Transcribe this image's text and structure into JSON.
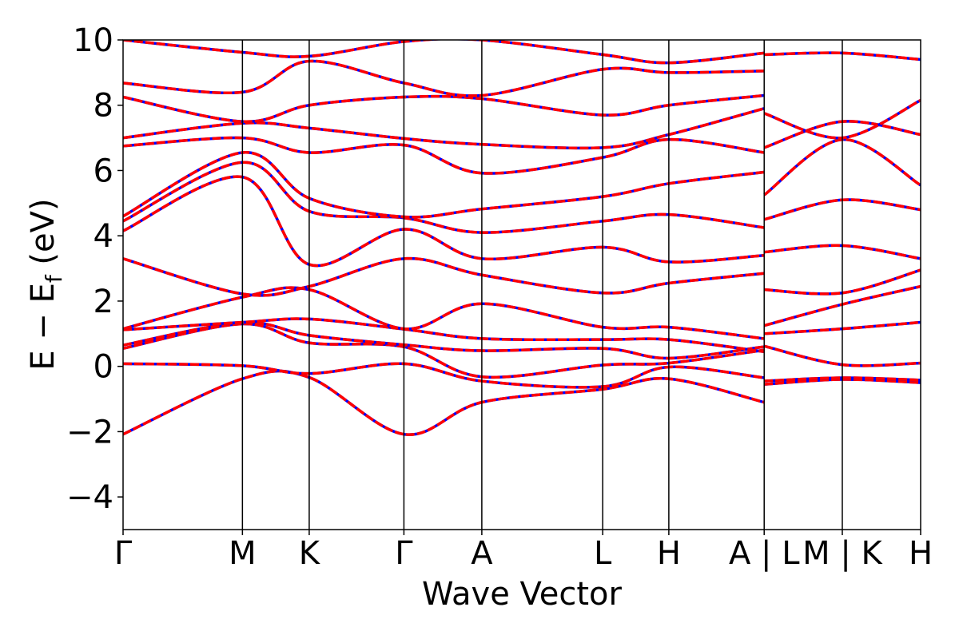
{
  "chart_data": {
    "type": "line",
    "title": "",
    "xlabel": "Wave Vector",
    "ylabel": "E − E_f (eV)",
    "ylabel_parts": {
      "main": "E − E",
      "sub": "f",
      "unit": " (eV)"
    },
    "ylim": [
      -5,
      10
    ],
    "yticks": [
      -4,
      -2,
      0,
      2,
      4,
      6,
      8,
      10
    ],
    "ytick_labels": [
      "−4",
      "−2",
      "0",
      "2",
      "4",
      "6",
      "8",
      "10"
    ],
    "xlim": [
      0,
      3.655
    ],
    "kpoints": [
      {
        "x": 0.0,
        "label": "Γ"
      },
      {
        "x": 0.547,
        "label": "M"
      },
      {
        "x": 0.853,
        "label": "K"
      },
      {
        "x": 1.287,
        "label": "Γ"
      },
      {
        "x": 1.644,
        "label": "A"
      },
      {
        "x": 2.198,
        "label": "L"
      },
      {
        "x": 2.501,
        "label": "H"
      },
      {
        "x": 2.938,
        "label": "A | L"
      },
      {
        "x": 3.296,
        "label": "M | K"
      },
      {
        "x": 3.655,
        "label": "H"
      }
    ],
    "grid": false,
    "colors": {
      "series_a": "#0000ff",
      "series_b": "#ff0000",
      "kline": "#000000"
    },
    "series": [
      {
        "style": "solid-blue"
      },
      {
        "style": "dashed-red"
      }
    ],
    "bands": [
      [
        [
          0.0,
          -2.08
        ],
        [
          0.547,
          -0.38
        ],
        [
          0.853,
          -0.34
        ],
        [
          1.287,
          -2.08
        ],
        [
          1.644,
          -1.1
        ],
        [
          2.198,
          -0.7
        ],
        [
          2.501,
          -0.38
        ],
        [
          2.938,
          -1.1
        ]
      ],
      [
        [
          0.0,
          0.08
        ],
        [
          0.547,
          0.02
        ],
        [
          0.853,
          -0.22
        ],
        [
          1.287,
          0.08
        ],
        [
          1.644,
          -0.45
        ],
        [
          2.198,
          -0.62
        ],
        [
          2.501,
          -0.02
        ],
        [
          2.938,
          -0.35
        ]
      ],
      [
        [
          0.0,
          0.55
        ],
        [
          0.547,
          1.3
        ],
        [
          0.853,
          0.72
        ],
        [
          1.287,
          0.6
        ],
        [
          1.644,
          -0.32
        ],
        [
          2.198,
          0.04
        ],
        [
          2.501,
          0.1
        ],
        [
          2.938,
          0.5
        ]
      ],
      [
        [
          0.0,
          0.65
        ],
        [
          0.547,
          1.34
        ],
        [
          0.853,
          0.95
        ],
        [
          1.287,
          0.66
        ],
        [
          1.644,
          0.48
        ],
        [
          2.198,
          0.55
        ],
        [
          2.501,
          0.25
        ],
        [
          2.938,
          0.6
        ]
      ],
      [
        [
          0.0,
          1.12
        ],
        [
          0.547,
          1.35
        ],
        [
          0.853,
          1.45
        ],
        [
          1.287,
          1.14
        ],
        [
          1.644,
          0.85
        ],
        [
          2.198,
          0.82
        ],
        [
          2.501,
          0.82
        ],
        [
          2.938,
          0.45
        ]
      ],
      [
        [
          0.0,
          1.15
        ],
        [
          0.547,
          2.12
        ],
        [
          0.853,
          2.35
        ],
        [
          1.287,
          1.15
        ],
        [
          1.644,
          1.92
        ],
        [
          2.198,
          1.2
        ],
        [
          2.501,
          1.2
        ],
        [
          2.938,
          0.85
        ]
      ],
      [
        [
          0.0,
          3.3
        ],
        [
          0.547,
          2.22
        ],
        [
          0.853,
          2.45
        ],
        [
          1.287,
          3.3
        ],
        [
          1.644,
          2.8
        ],
        [
          2.198,
          2.25
        ],
        [
          2.501,
          2.55
        ],
        [
          2.938,
          2.85
        ]
      ],
      [
        [
          0.0,
          4.15
        ],
        [
          0.547,
          5.8
        ],
        [
          0.853,
          3.12
        ],
        [
          1.287,
          4.2
        ],
        [
          1.644,
          3.3
        ],
        [
          2.198,
          3.65
        ],
        [
          2.501,
          3.2
        ],
        [
          2.938,
          3.4
        ]
      ],
      [
        [
          0.0,
          4.45
        ],
        [
          0.547,
          6.25
        ],
        [
          0.853,
          4.75
        ],
        [
          1.287,
          4.55
        ],
        [
          1.644,
          4.1
        ],
        [
          2.198,
          4.45
        ],
        [
          2.501,
          4.65
        ],
        [
          2.938,
          4.25
        ]
      ],
      [
        [
          0.0,
          4.6
        ],
        [
          0.547,
          6.55
        ],
        [
          0.853,
          5.15
        ],
        [
          1.287,
          4.58
        ],
        [
          1.644,
          4.82
        ],
        [
          2.198,
          5.2
        ],
        [
          2.501,
          5.6
        ],
        [
          2.938,
          5.95
        ]
      ],
      [
        [
          0.0,
          6.75
        ],
        [
          0.547,
          7.0
        ],
        [
          0.853,
          6.55
        ],
        [
          1.287,
          6.78
        ],
        [
          1.644,
          5.92
        ],
        [
          2.198,
          6.4
        ],
        [
          2.501,
          6.95
        ],
        [
          2.938,
          6.55
        ]
      ],
      [
        [
          0.0,
          7.0
        ],
        [
          0.547,
          7.45
        ],
        [
          0.853,
          7.3
        ],
        [
          1.287,
          6.98
        ],
        [
          1.644,
          6.8
        ],
        [
          2.198,
          6.7
        ],
        [
          2.501,
          7.1
        ],
        [
          2.938,
          7.9
        ]
      ],
      [
        [
          0.0,
          8.25
        ],
        [
          0.547,
          7.5
        ],
        [
          0.853,
          8.0
        ],
        [
          1.287,
          8.25
        ],
        [
          1.644,
          8.2
        ],
        [
          2.198,
          7.7
        ],
        [
          2.501,
          8.0
        ],
        [
          2.938,
          8.3
        ]
      ],
      [
        [
          0.0,
          8.68
        ],
        [
          0.547,
          8.4
        ],
        [
          0.853,
          9.35
        ],
        [
          1.287,
          8.68
        ],
        [
          1.644,
          8.3
        ],
        [
          2.198,
          9.1
        ],
        [
          2.501,
          9.0
        ],
        [
          2.938,
          9.05
        ]
      ],
      [
        [
          0.0,
          10.0
        ],
        [
          0.547,
          9.62
        ],
        [
          0.853,
          9.5
        ],
        [
          1.287,
          9.95
        ],
        [
          1.644,
          10.0
        ],
        [
          2.198,
          9.55
        ],
        [
          2.501,
          9.3
        ],
        [
          2.938,
          9.6
        ]
      ],
      [
        [
          2.938,
          -0.55
        ],
        [
          3.296,
          -0.4
        ],
        [
          3.655,
          -0.5
        ]
      ],
      [
        [
          2.938,
          -0.45
        ],
        [
          3.296,
          -0.35
        ],
        [
          3.655,
          -0.42
        ]
      ],
      [
        [
          2.938,
          0.62
        ],
        [
          3.296,
          0.05
        ],
        [
          3.655,
          0.1
        ]
      ],
      [
        [
          2.938,
          1.0
        ],
        [
          3.296,
          1.15
        ],
        [
          3.655,
          1.35
        ]
      ],
      [
        [
          2.938,
          1.25
        ],
        [
          3.296,
          1.9
        ],
        [
          3.655,
          2.45
        ]
      ],
      [
        [
          2.938,
          2.35
        ],
        [
          3.296,
          2.25
        ],
        [
          3.655,
          2.95
        ]
      ],
      [
        [
          2.938,
          3.5
        ],
        [
          3.296,
          3.7
        ],
        [
          3.655,
          3.3
        ]
      ],
      [
        [
          2.938,
          4.5
        ],
        [
          3.296,
          5.1
        ],
        [
          3.655,
          4.8
        ]
      ],
      [
        [
          2.938,
          5.25
        ],
        [
          3.296,
          6.95
        ],
        [
          3.655,
          5.55
        ]
      ],
      [
        [
          2.938,
          6.7
        ],
        [
          3.296,
          7.5
        ],
        [
          3.655,
          7.1
        ]
      ],
      [
        [
          2.938,
          7.75
        ],
        [
          3.296,
          7.0
        ],
        [
          3.655,
          8.15
        ]
      ],
      [
        [
          2.938,
          9.55
        ],
        [
          3.296,
          9.6
        ],
        [
          3.655,
          9.4
        ]
      ]
    ]
  }
}
